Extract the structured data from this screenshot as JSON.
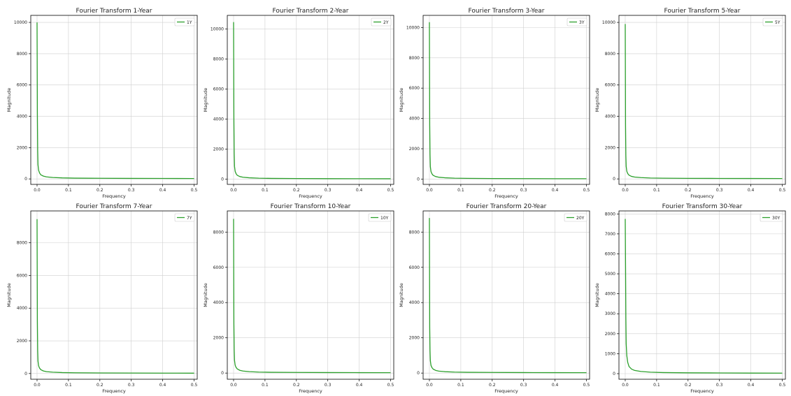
{
  "colors": {
    "series": "#2ca02c",
    "grid": "#cfcfcf",
    "axes": "#000000"
  },
  "chart_data": [
    {
      "type": "line",
      "title": "Fourier Transform 1-Year",
      "xlabel": "Frequency",
      "ylabel": "Magnitude",
      "xlim": [
        -0.02,
        0.51
      ],
      "ylim": [
        -350,
        10450
      ],
      "xticks": [
        0.0,
        0.1,
        0.2,
        0.3,
        0.4,
        0.5
      ],
      "xtick_labels": [
        "0.0",
        "0.1",
        "0.2",
        "0.3",
        "0.4",
        "0.5"
      ],
      "yticks": [
        0,
        2000,
        4000,
        6000,
        8000,
        10000
      ],
      "ytick_labels": [
        "0",
        "2000",
        "4000",
        "6000",
        "8000",
        "10000"
      ],
      "grid": true,
      "legend_position": "top-right",
      "series": [
        {
          "name": "1Y",
          "x": [
            0.0,
            0.001,
            0.002,
            0.003,
            0.005,
            0.008,
            0.012,
            0.02,
            0.03,
            0.05,
            0.08,
            0.12,
            0.2,
            0.3,
            0.4,
            0.5
          ],
          "y": [
            10000,
            4200,
            1800,
            900,
            550,
            380,
            260,
            180,
            130,
            90,
            65,
            50,
            40,
            32,
            28,
            25
          ]
        }
      ]
    },
    {
      "type": "line",
      "title": "Fourier Transform 2-Year",
      "xlabel": "Frequency",
      "ylabel": "Magnitude",
      "xlim": [
        -0.02,
        0.51
      ],
      "ylim": [
        -350,
        10900
      ],
      "xticks": [
        0.0,
        0.1,
        0.2,
        0.3,
        0.4,
        0.5
      ],
      "xtick_labels": [
        "0.0",
        "0.1",
        "0.2",
        "0.3",
        "0.4",
        "0.5"
      ],
      "yticks": [
        0,
        2000,
        4000,
        6000,
        8000,
        10000
      ],
      "ytick_labels": [
        "0",
        "2000",
        "4000",
        "6000",
        "8000",
        "10000"
      ],
      "grid": true,
      "legend_position": "top-right",
      "series": [
        {
          "name": "2Y",
          "x": [
            0.0,
            0.001,
            0.002,
            0.003,
            0.005,
            0.008,
            0.012,
            0.02,
            0.03,
            0.05,
            0.08,
            0.12,
            0.2,
            0.3,
            0.4,
            0.5
          ],
          "y": [
            10450,
            4000,
            1700,
            850,
            520,
            360,
            250,
            170,
            125,
            88,
            62,
            48,
            38,
            31,
            27,
            24
          ]
        }
      ]
    },
    {
      "type": "line",
      "title": "Fourier Transform 3-Year",
      "xlabel": "Frequency",
      "ylabel": "Magnitude",
      "xlim": [
        -0.02,
        0.51
      ],
      "ylim": [
        -350,
        10800
      ],
      "xticks": [
        0.0,
        0.1,
        0.2,
        0.3,
        0.4,
        0.5
      ],
      "xtick_labels": [
        "0.0",
        "0.1",
        "0.2",
        "0.3",
        "0.4",
        "0.5"
      ],
      "yticks": [
        0,
        2000,
        4000,
        6000,
        8000,
        10000
      ],
      "ytick_labels": [
        "0",
        "2000",
        "4000",
        "6000",
        "8000",
        "10000"
      ],
      "grid": true,
      "legend_position": "top-right",
      "series": [
        {
          "name": "3Y",
          "x": [
            0.0,
            0.001,
            0.002,
            0.003,
            0.005,
            0.008,
            0.012,
            0.02,
            0.03,
            0.05,
            0.08,
            0.12,
            0.2,
            0.3,
            0.4,
            0.5
          ],
          "y": [
            10350,
            3600,
            1600,
            820,
            500,
            350,
            245,
            165,
            120,
            86,
            60,
            47,
            37,
            30,
            26,
            23
          ]
        }
      ]
    },
    {
      "type": "line",
      "title": "Fourier Transform 5-Year",
      "xlabel": "Frequency",
      "ylabel": "Magnitude",
      "xlim": [
        -0.02,
        0.51
      ],
      "ylim": [
        -350,
        10450
      ],
      "xticks": [
        0.0,
        0.1,
        0.2,
        0.3,
        0.4,
        0.5
      ],
      "xtick_labels": [
        "0.0",
        "0.1",
        "0.2",
        "0.3",
        "0.4",
        "0.5"
      ],
      "yticks": [
        0,
        2000,
        4000,
        6000,
        8000,
        10000
      ],
      "ytick_labels": [
        "0",
        "2000",
        "4000",
        "6000",
        "8000",
        "10000"
      ],
      "grid": true,
      "legend_position": "top-right",
      "series": [
        {
          "name": "5Y",
          "x": [
            0.0,
            0.001,
            0.002,
            0.003,
            0.005,
            0.008,
            0.012,
            0.02,
            0.03,
            0.05,
            0.08,
            0.12,
            0.2,
            0.3,
            0.4,
            0.5
          ],
          "y": [
            9900,
            3400,
            1500,
            800,
            490,
            340,
            240,
            160,
            118,
            84,
            59,
            46,
            36,
            30,
            26,
            23
          ]
        }
      ]
    },
    {
      "type": "line",
      "title": "Fourier Transform 7-Year",
      "xlabel": "Frequency",
      "ylabel": "Magnitude",
      "xlim": [
        -0.02,
        0.51
      ],
      "ylim": [
        -350,
        9950
      ],
      "xticks": [
        0.0,
        0.1,
        0.2,
        0.3,
        0.4,
        0.5
      ],
      "xtick_labels": [
        "0.0",
        "0.1",
        "0.2",
        "0.3",
        "0.4",
        "0.5"
      ],
      "yticks": [
        0,
        2000,
        4000,
        6000,
        8000
      ],
      "ytick_labels": [
        "0",
        "2000",
        "4000",
        "6000",
        "8000"
      ],
      "grid": true,
      "legend_position": "top-right",
      "series": [
        {
          "name": "7Y",
          "x": [
            0.0,
            0.001,
            0.002,
            0.003,
            0.005,
            0.008,
            0.012,
            0.02,
            0.03,
            0.05,
            0.08,
            0.12,
            0.2,
            0.3,
            0.4,
            0.5
          ],
          "y": [
            9450,
            3200,
            1400,
            760,
            470,
            330,
            235,
            158,
            116,
            82,
            58,
            45,
            36,
            29,
            25,
            22
          ]
        }
      ]
    },
    {
      "type": "line",
      "title": "Fourier Transform 10-Year",
      "xlabel": "Frequency",
      "ylabel": "Magnitude",
      "xlim": [
        -0.02,
        0.51
      ],
      "ylim": [
        -350,
        9200
      ],
      "xticks": [
        0.0,
        0.1,
        0.2,
        0.3,
        0.4,
        0.5
      ],
      "xtick_labels": [
        "0.0",
        "0.1",
        "0.2",
        "0.3",
        "0.4",
        "0.5"
      ],
      "yticks": [
        0,
        2000,
        4000,
        6000,
        8000
      ],
      "ytick_labels": [
        "0",
        "2000",
        "4000",
        "6000",
        "8000"
      ],
      "grid": true,
      "legend_position": "top-right",
      "series": [
        {
          "name": "10Y",
          "x": [
            0.0,
            0.001,
            0.002,
            0.003,
            0.005,
            0.008,
            0.012,
            0.02,
            0.03,
            0.05,
            0.08,
            0.12,
            0.2,
            0.3,
            0.4,
            0.5
          ],
          "y": [
            8750,
            2800,
            1300,
            720,
            450,
            320,
            230,
            155,
            114,
            80,
            57,
            44,
            35,
            29,
            25,
            22
          ]
        }
      ]
    },
    {
      "type": "line",
      "title": "Fourier Transform 20-Year",
      "xlabel": "Frequency",
      "ylabel": "Magnitude",
      "xlim": [
        -0.02,
        0.51
      ],
      "ylim": [
        -350,
        9200
      ],
      "xticks": [
        0.0,
        0.1,
        0.2,
        0.3,
        0.4,
        0.5
      ],
      "xtick_labels": [
        "0.0",
        "0.1",
        "0.2",
        "0.3",
        "0.4",
        "0.5"
      ],
      "yticks": [
        0,
        2000,
        4000,
        6000,
        8000
      ],
      "ytick_labels": [
        "0",
        "2000",
        "4000",
        "6000",
        "8000"
      ],
      "grid": true,
      "legend_position": "top-right",
      "series": [
        {
          "name": "20Y",
          "x": [
            0.0,
            0.001,
            0.002,
            0.003,
            0.005,
            0.008,
            0.012,
            0.02,
            0.03,
            0.05,
            0.08,
            0.12,
            0.2,
            0.3,
            0.4,
            0.5
          ],
          "y": [
            8800,
            2600,
            1250,
            700,
            440,
            315,
            225,
            152,
            112,
            79,
            56,
            44,
            35,
            28,
            24,
            21
          ]
        }
      ]
    },
    {
      "type": "line",
      "title": "Fourier Transform 30-Year",
      "xlabel": "Frequency",
      "ylabel": "Magnitude",
      "xlim": [
        -0.02,
        0.51
      ],
      "ylim": [
        -280,
        8150
      ],
      "xticks": [
        0.0,
        0.1,
        0.2,
        0.3,
        0.4,
        0.5
      ],
      "xtick_labels": [
        "0.0",
        "0.1",
        "0.2",
        "0.3",
        "0.4",
        "0.5"
      ],
      "yticks": [
        0,
        1000,
        2000,
        3000,
        4000,
        5000,
        6000,
        7000,
        8000
      ],
      "ytick_labels": [
        "0",
        "1000",
        "2000",
        "3000",
        "4000",
        "5000",
        "6000",
        "7000",
        "8000"
      ],
      "grid": true,
      "legend_position": "top-right",
      "series": [
        {
          "name": "30Y",
          "x": [
            0.0,
            0.001,
            0.002,
            0.003,
            0.005,
            0.008,
            0.012,
            0.02,
            0.03,
            0.05,
            0.08,
            0.12,
            0.2,
            0.3,
            0.4,
            0.5
          ],
          "y": [
            7750,
            5400,
            2800,
            1500,
            900,
            560,
            360,
            230,
            160,
            110,
            75,
            55,
            42,
            34,
            28,
            25
          ]
        }
      ]
    }
  ]
}
